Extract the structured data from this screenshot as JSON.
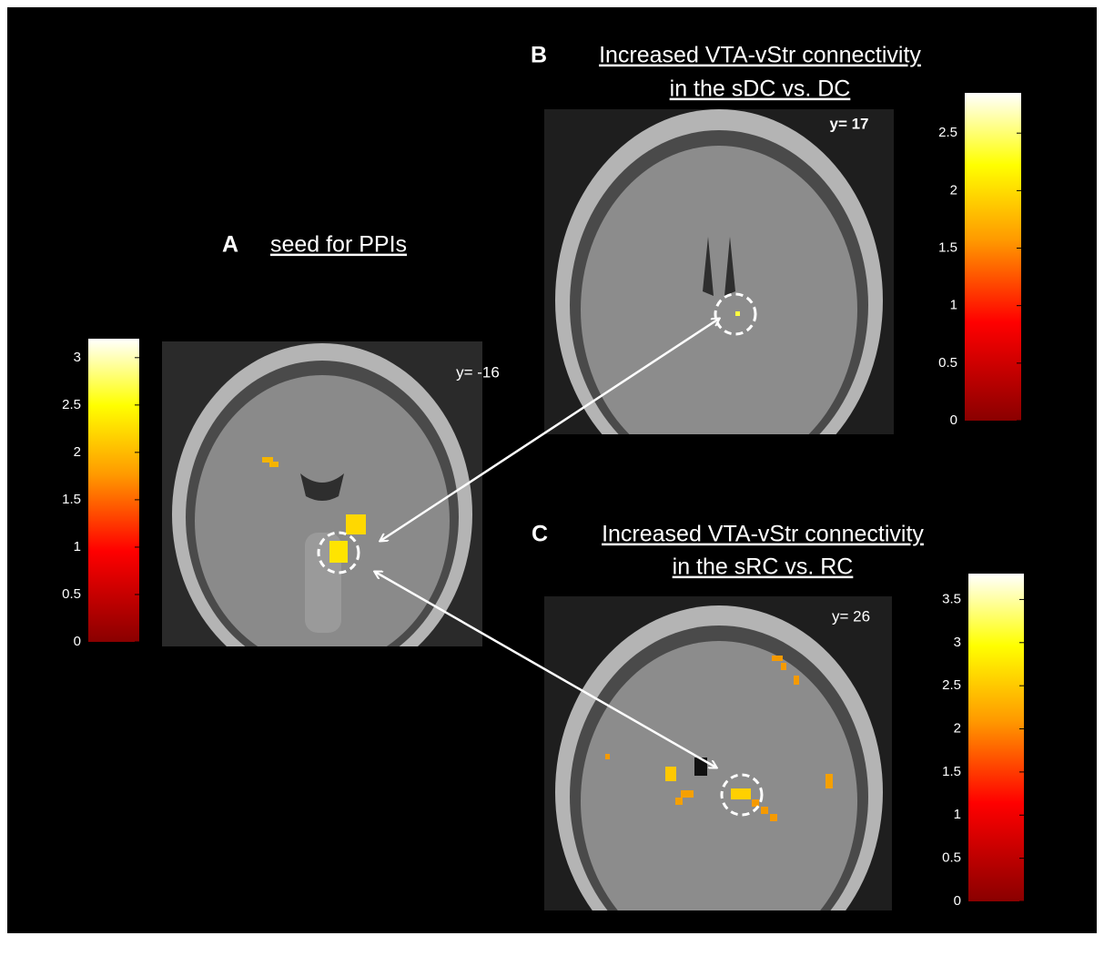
{
  "panels": [
    {
      "letter": "A",
      "title": [
        "seed for PPIs"
      ],
      "coordinate": "y= -16",
      "colorbar": {
        "lim": [
          0,
          3.2
        ],
        "ticks": [
          0,
          0.5,
          1,
          1.5,
          2,
          2.5,
          3
        ]
      }
    },
    {
      "letter": "B",
      "title": [
        "Increased VTA-vStr connectivity",
        "in the sDC vs. DC"
      ],
      "coordinate": "y= 17",
      "colorbar": {
        "lim": [
          0,
          2.85
        ],
        "ticks": [
          0,
          0.5,
          1,
          1.5,
          2,
          2.5
        ]
      }
    },
    {
      "letter": "C",
      "title": [
        "Increased VTA-vStr connectivity",
        "in the sRC vs. RC"
      ],
      "coordinate": "y= 26",
      "colorbar": {
        "lim": [
          0,
          3.8
        ],
        "ticks": [
          0,
          0.5,
          1,
          1.5,
          2,
          2.5,
          3,
          3.5
        ]
      }
    }
  ]
}
